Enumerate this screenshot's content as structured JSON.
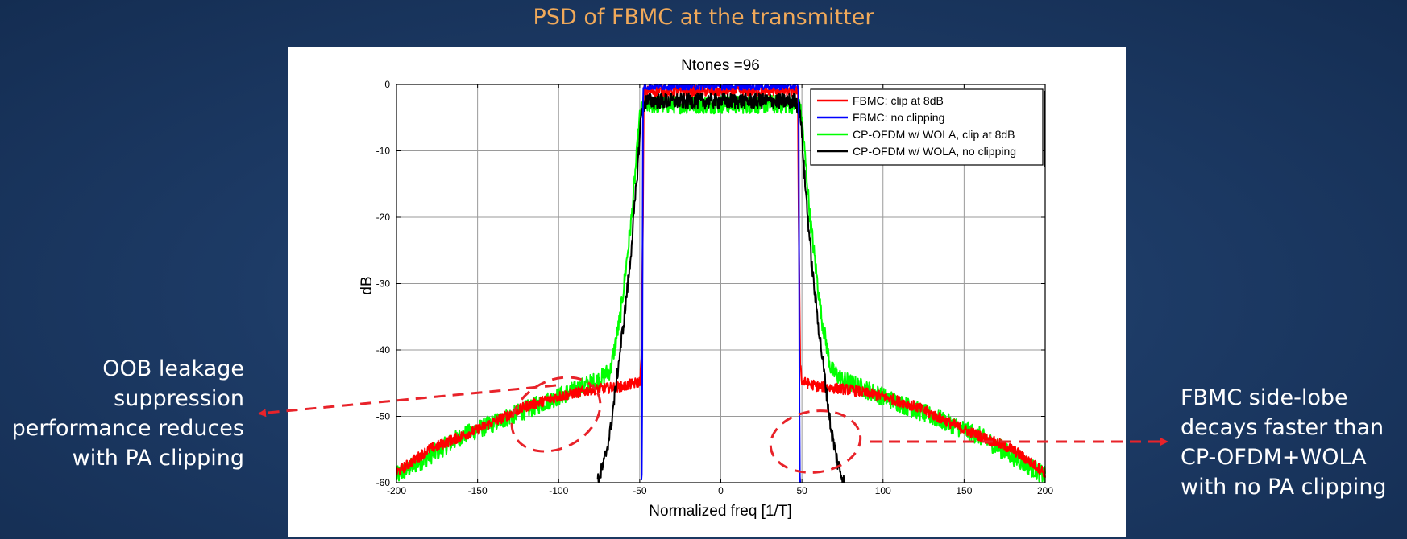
{
  "slide_title": "PSD of FBMC at the transmitter",
  "annotations": {
    "left_note": [
      "OOB leakage",
      "suppression",
      "performance reduces",
      "with PA clipping"
    ],
    "right_note": [
      "FBMC side-lobe",
      "decays faster than",
      "CP-OFDM+WOLA",
      "with no PA clipping"
    ]
  },
  "colors": {
    "title": "#f0a95a",
    "annotation_red": "#e8232a",
    "fbmc_clip": "#ff0000",
    "fbmc_noclip": "#0000ff",
    "ofdm_clip": "#00ff00",
    "ofdm_noclip": "#000000"
  },
  "chart_data": {
    "type": "line",
    "title": "Ntones =96",
    "xlabel": "Normalized freq [1/T]",
    "ylabel": "dB",
    "xlim": [
      -200,
      200
    ],
    "ylim": [
      -60,
      0
    ],
    "xticks": [
      -200,
      -150,
      -100,
      -50,
      0,
      50,
      100,
      150,
      200
    ],
    "yticks": [
      0,
      -10,
      -20,
      -30,
      -40,
      -50,
      -60
    ],
    "grid": true,
    "legend_position": "top-right",
    "series": [
      {
        "name": "FBMC: clip at 8dB",
        "color": "#ff0000",
        "points": [
          [
            -200,
            -58.5
          ],
          [
            -180,
            -55
          ],
          [
            -150,
            -52
          ],
          [
            -120,
            -48.5
          ],
          [
            -100,
            -47
          ],
          [
            -80,
            -46
          ],
          [
            -60,
            -45.5
          ],
          [
            -53,
            -45
          ],
          [
            -50,
            -44.8
          ],
          [
            -49,
            -42
          ],
          [
            -48,
            -20
          ],
          [
            -47.5,
            -1
          ],
          [
            47.5,
            -1
          ],
          [
            48,
            -20
          ],
          [
            49,
            -42
          ],
          [
            50,
            -44.8
          ],
          [
            53,
            -45
          ],
          [
            60,
            -45.5
          ],
          [
            80,
            -46
          ],
          [
            100,
            -47
          ],
          [
            120,
            -48.5
          ],
          [
            150,
            -52
          ],
          [
            180,
            -55
          ],
          [
            200,
            -58.5
          ]
        ]
      },
      {
        "name": "FBMC: no clipping",
        "color": "#0000ff",
        "points": [
          [
            -49,
            -60
          ],
          [
            -48.6,
            -58
          ],
          [
            -48.3,
            -30
          ],
          [
            -48,
            -3
          ],
          [
            -47.7,
            -0.3
          ],
          [
            47.7,
            -0.3
          ],
          [
            48,
            -3
          ],
          [
            48.3,
            -30
          ],
          [
            48.6,
            -58
          ],
          [
            49,
            -60
          ]
        ]
      },
      {
        "name": "CP-OFDM w/ WOLA, clip at 8dB",
        "color": "#00ff00",
        "points": [
          [
            -200,
            -59
          ],
          [
            -180,
            -56
          ],
          [
            -160,
            -53
          ],
          [
            -140,
            -51
          ],
          [
            -120,
            -49
          ],
          [
            -100,
            -47
          ],
          [
            -85,
            -45.5
          ],
          [
            -75,
            -44.5
          ],
          [
            -68,
            -43
          ],
          [
            -62,
            -35
          ],
          [
            -55,
            -20
          ],
          [
            -50,
            -5
          ],
          [
            -48,
            -3
          ],
          [
            48,
            -3
          ],
          [
            50,
            -5
          ],
          [
            55,
            -20
          ],
          [
            62,
            -35
          ],
          [
            68,
            -43
          ],
          [
            75,
            -44.5
          ],
          [
            85,
            -45.5
          ],
          [
            100,
            -47
          ],
          [
            120,
            -49
          ],
          [
            140,
            -51
          ],
          [
            160,
            -53
          ],
          [
            180,
            -56
          ],
          [
            200,
            -59
          ]
        ]
      },
      {
        "name": "CP-OFDM w/ WOLA, no clipping",
        "color": "#000000",
        "points": [
          [
            -76,
            -60
          ],
          [
            -72,
            -57
          ],
          [
            -68,
            -52
          ],
          [
            -64,
            -44
          ],
          [
            -60,
            -36
          ],
          [
            -56,
            -27
          ],
          [
            -52,
            -15
          ],
          [
            -49,
            -4
          ],
          [
            -46,
            -2.5
          ],
          [
            46,
            -2.5
          ],
          [
            49,
            -4
          ],
          [
            52,
            -15
          ],
          [
            56,
            -27
          ],
          [
            60,
            -36
          ],
          [
            64,
            -44
          ],
          [
            68,
            -52
          ],
          [
            72,
            -57
          ],
          [
            76,
            -60
          ]
        ]
      }
    ]
  }
}
